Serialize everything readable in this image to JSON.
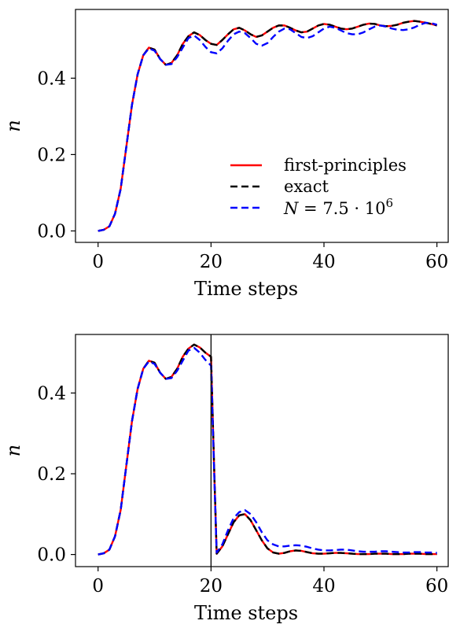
{
  "chart_data": [
    {
      "type": "line",
      "title": "",
      "xlabel": "Time steps",
      "ylabel": "n",
      "xlim": [
        -4,
        62
      ],
      "ylim": [
        -0.03,
        0.58
      ],
      "xticks": [
        0,
        20,
        40,
        60
      ],
      "yticks": [
        0.0,
        0.2,
        0.4
      ],
      "xtick_labels": [
        "0",
        "20",
        "40",
        "60"
      ],
      "ytick_labels": [
        "0.0",
        "0.2",
        "0.4"
      ],
      "grid": false,
      "legend": "lower-right",
      "series": [
        {
          "name": "first-principles",
          "color": "#ff0000",
          "style": "solid",
          "x": [
            0,
            1,
            2,
            3,
            4,
            5,
            6,
            7,
            8,
            9,
            10,
            11,
            12,
            13,
            14,
            15,
            16,
            17,
            18,
            19,
            20,
            21,
            22,
            23,
            24,
            25,
            26,
            27,
            28,
            29,
            30,
            31,
            32,
            33,
            34,
            35,
            36,
            37,
            38,
            39,
            40,
            41,
            42,
            43,
            44,
            45,
            46,
            47,
            48,
            49,
            50,
            51,
            52,
            53,
            54,
            55,
            56,
            57,
            58,
            59,
            60
          ],
          "y": [
            0.0,
            0.003,
            0.012,
            0.045,
            0.11,
            0.22,
            0.33,
            0.41,
            0.46,
            0.48,
            0.475,
            0.45,
            0.435,
            0.44,
            0.46,
            0.49,
            0.51,
            0.52,
            0.513,
            0.5,
            0.49,
            0.487,
            0.5,
            0.515,
            0.528,
            0.532,
            0.525,
            0.515,
            0.508,
            0.512,
            0.522,
            0.532,
            0.538,
            0.538,
            0.532,
            0.525,
            0.52,
            0.522,
            0.53,
            0.538,
            0.542,
            0.54,
            0.535,
            0.53,
            0.528,
            0.53,
            0.535,
            0.54,
            0.543,
            0.542,
            0.538,
            0.536,
            0.537,
            0.54,
            0.545,
            0.548,
            0.55,
            0.548,
            0.545,
            0.542,
            0.538
          ]
        },
        {
          "name": "exact",
          "color": "#000000",
          "style": "dashed",
          "x": [
            0,
            1,
            2,
            3,
            4,
            5,
            6,
            7,
            8,
            9,
            10,
            11,
            12,
            13,
            14,
            15,
            16,
            17,
            18,
            19,
            20,
            21,
            22,
            23,
            24,
            25,
            26,
            27,
            28,
            29,
            30,
            31,
            32,
            33,
            34,
            35,
            36,
            37,
            38,
            39,
            40,
            41,
            42,
            43,
            44,
            45,
            46,
            47,
            48,
            49,
            50,
            51,
            52,
            53,
            54,
            55,
            56,
            57,
            58,
            59,
            60
          ],
          "y": [
            0.0,
            0.003,
            0.012,
            0.045,
            0.11,
            0.22,
            0.33,
            0.41,
            0.46,
            0.48,
            0.475,
            0.45,
            0.435,
            0.44,
            0.46,
            0.49,
            0.51,
            0.52,
            0.513,
            0.5,
            0.49,
            0.487,
            0.5,
            0.515,
            0.528,
            0.532,
            0.525,
            0.515,
            0.508,
            0.512,
            0.522,
            0.532,
            0.538,
            0.538,
            0.532,
            0.525,
            0.52,
            0.522,
            0.53,
            0.538,
            0.542,
            0.54,
            0.535,
            0.53,
            0.528,
            0.53,
            0.535,
            0.54,
            0.543,
            0.542,
            0.538,
            0.536,
            0.537,
            0.54,
            0.545,
            0.548,
            0.55,
            0.548,
            0.545,
            0.542,
            0.538
          ]
        },
        {
          "name": "N = 7.5 · 10^6",
          "color": "#0000ff",
          "style": "dashed",
          "x": [
            0,
            1,
            2,
            3,
            4,
            5,
            6,
            7,
            8,
            9,
            10,
            11,
            12,
            13,
            14,
            15,
            16,
            17,
            18,
            19,
            20,
            21,
            22,
            23,
            24,
            25,
            26,
            27,
            28,
            29,
            30,
            31,
            32,
            33,
            34,
            35,
            36,
            37,
            38,
            39,
            40,
            41,
            42,
            43,
            44,
            45,
            46,
            47,
            48,
            49,
            50,
            51,
            52,
            53,
            54,
            55,
            56,
            57,
            58,
            59,
            60
          ],
          "y": [
            0.0,
            0.003,
            0.012,
            0.045,
            0.11,
            0.22,
            0.33,
            0.41,
            0.46,
            0.478,
            0.472,
            0.45,
            0.435,
            0.437,
            0.455,
            0.48,
            0.505,
            0.512,
            0.5,
            0.482,
            0.468,
            0.465,
            0.478,
            0.498,
            0.515,
            0.522,
            0.518,
            0.505,
            0.49,
            0.485,
            0.492,
            0.508,
            0.522,
            0.53,
            0.528,
            0.518,
            0.508,
            0.505,
            0.51,
            0.52,
            0.53,
            0.535,
            0.532,
            0.525,
            0.518,
            0.515,
            0.515,
            0.52,
            0.528,
            0.535,
            0.538,
            0.535,
            0.53,
            0.527,
            0.526,
            0.528,
            0.533,
            0.54,
            0.545,
            0.544,
            0.54
          ]
        }
      ],
      "legend_entries": {
        "first_principles": "first-principles",
        "exact": "exact",
        "n_var": "N",
        "n_eq": " = 7.5 · 10",
        "n_exp": "6"
      }
    },
    {
      "type": "line",
      "title": "",
      "xlabel": "Time steps",
      "ylabel": "n",
      "xlim": [
        -4,
        62
      ],
      "ylim": [
        -0.03,
        0.545
      ],
      "xticks": [
        0,
        20,
        40,
        60
      ],
      "yticks": [
        0.0,
        0.2,
        0.4
      ],
      "xtick_labels": [
        "0",
        "20",
        "40",
        "60"
      ],
      "ytick_labels": [
        "0.0",
        "0.2",
        "0.4"
      ],
      "vline_x": 20,
      "grid": false,
      "series": [
        {
          "name": "first-principles",
          "color": "#ff0000",
          "style": "solid",
          "x": [
            0,
            1,
            2,
            3,
            4,
            5,
            6,
            7,
            8,
            9,
            10,
            11,
            12,
            13,
            14,
            15,
            16,
            17,
            18,
            19,
            20,
            20.5,
            21,
            22,
            23,
            24,
            25,
            26,
            27,
            28,
            29,
            30,
            31,
            32,
            33,
            34,
            35,
            36,
            37,
            38,
            39,
            40,
            41,
            42,
            43,
            44,
            45,
            46,
            47,
            48,
            49,
            50,
            51,
            52,
            53,
            54,
            55,
            56,
            57,
            58,
            59,
            60
          ],
          "y": [
            0.0,
            0.003,
            0.012,
            0.045,
            0.11,
            0.22,
            0.33,
            0.41,
            0.46,
            0.48,
            0.475,
            0.45,
            0.435,
            0.44,
            0.46,
            0.49,
            0.51,
            0.52,
            0.513,
            0.5,
            0.49,
            0.24,
            0.002,
            0.02,
            0.05,
            0.08,
            0.097,
            0.1,
            0.085,
            0.06,
            0.035,
            0.015,
            0.005,
            0.002,
            0.004,
            0.008,
            0.01,
            0.009,
            0.006,
            0.003,
            0.002,
            0.002,
            0.003,
            0.004,
            0.004,
            0.003,
            0.002,
            0.001,
            0.001,
            0.001,
            0.002,
            0.002,
            0.002,
            0.001,
            0.001,
            0.001,
            0.002,
            0.002,
            0.002,
            0.001,
            0.001,
            0.001
          ]
        },
        {
          "name": "exact",
          "color": "#000000",
          "style": "dashed",
          "x": [
            0,
            1,
            2,
            3,
            4,
            5,
            6,
            7,
            8,
            9,
            10,
            11,
            12,
            13,
            14,
            15,
            16,
            17,
            18,
            19,
            20,
            20.5,
            21,
            22,
            23,
            24,
            25,
            26,
            27,
            28,
            29,
            30,
            31,
            32,
            33,
            34,
            35,
            36,
            37,
            38,
            39,
            40,
            41,
            42,
            43,
            44,
            45,
            46,
            47,
            48,
            49,
            50,
            51,
            52,
            53,
            54,
            55,
            56,
            57,
            58,
            59,
            60
          ],
          "y": [
            0.0,
            0.003,
            0.012,
            0.045,
            0.11,
            0.22,
            0.33,
            0.41,
            0.46,
            0.48,
            0.475,
            0.45,
            0.435,
            0.44,
            0.46,
            0.49,
            0.51,
            0.52,
            0.513,
            0.5,
            0.49,
            0.24,
            0.002,
            0.02,
            0.05,
            0.08,
            0.097,
            0.1,
            0.085,
            0.06,
            0.035,
            0.015,
            0.005,
            0.002,
            0.004,
            0.008,
            0.01,
            0.009,
            0.006,
            0.003,
            0.002,
            0.002,
            0.003,
            0.004,
            0.004,
            0.003,
            0.002,
            0.001,
            0.001,
            0.001,
            0.002,
            0.002,
            0.002,
            0.001,
            0.001,
            0.001,
            0.002,
            0.002,
            0.002,
            0.001,
            0.001,
            0.001
          ]
        },
        {
          "name": "N = 7.5 · 10^6",
          "color": "#0000ff",
          "style": "dashed",
          "x": [
            0,
            1,
            2,
            3,
            4,
            5,
            6,
            7,
            8,
            9,
            10,
            11,
            12,
            13,
            14,
            15,
            16,
            17,
            18,
            19,
            20,
            20.5,
            21,
            22,
            23,
            24,
            25,
            26,
            27,
            28,
            29,
            30,
            31,
            32,
            33,
            34,
            35,
            36,
            37,
            38,
            39,
            40,
            41,
            42,
            43,
            44,
            45,
            46,
            47,
            48,
            49,
            50,
            51,
            52,
            53,
            54,
            55,
            56,
            57,
            58,
            59,
            60
          ],
          "y": [
            0.0,
            0.003,
            0.012,
            0.045,
            0.11,
            0.22,
            0.33,
            0.41,
            0.46,
            0.478,
            0.472,
            0.45,
            0.435,
            0.437,
            0.455,
            0.48,
            0.505,
            0.512,
            0.5,
            0.482,
            0.468,
            0.23,
            0.005,
            0.025,
            0.06,
            0.09,
            0.105,
            0.11,
            0.1,
            0.08,
            0.055,
            0.035,
            0.025,
            0.02,
            0.02,
            0.022,
            0.023,
            0.022,
            0.019,
            0.015,
            0.012,
            0.01,
            0.01,
            0.011,
            0.012,
            0.012,
            0.01,
            0.008,
            0.007,
            0.007,
            0.007,
            0.008,
            0.008,
            0.007,
            0.006,
            0.005,
            0.005,
            0.006,
            0.006,
            0.005,
            0.005,
            0.004
          ]
        }
      ]
    }
  ]
}
